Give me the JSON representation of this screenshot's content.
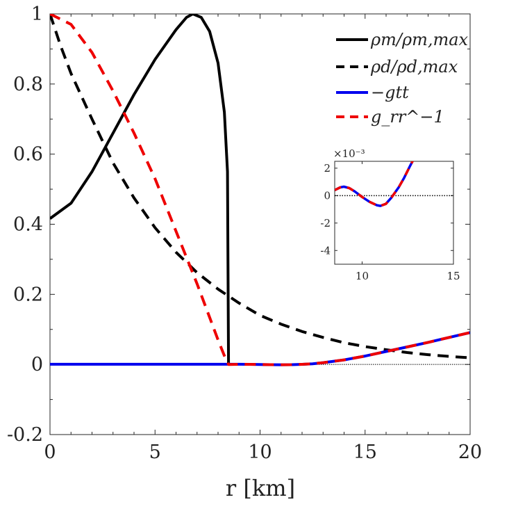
{
  "chart_data": {
    "type": "line",
    "xlabel": "r [km]",
    "ylabel": "",
    "xlim": [
      0,
      20
    ],
    "ylim": [
      -0.2,
      1
    ],
    "x_ticks": [
      "0",
      "5",
      "10",
      "15",
      "20"
    ],
    "y_ticks": [
      "-0.2",
      "0",
      "0.2",
      "0.4",
      "0.6",
      "0.8",
      "1"
    ],
    "grid": false,
    "legend_position": "top-right",
    "series": [
      {
        "name": "ρm/ρm,max",
        "color": "#000000",
        "style": "solid",
        "x": [
          0,
          1,
          2,
          3,
          4,
          5,
          6,
          6.5,
          6.8,
          7.2,
          7.6,
          8.0,
          8.3,
          8.45,
          8.5
        ],
        "y": [
          0.416,
          0.46,
          0.55,
          0.66,
          0.77,
          0.87,
          0.955,
          0.99,
          1.0,
          0.99,
          0.95,
          0.86,
          0.72,
          0.55,
          0.0
        ]
      },
      {
        "name": "ρd/ρd,max",
        "color": "#000000",
        "style": "dashed",
        "x": [
          0,
          0.5,
          1,
          2,
          3,
          4,
          5,
          6,
          7,
          8,
          9,
          10,
          11,
          12,
          13,
          14,
          15,
          16,
          17,
          18,
          19,
          20
        ],
        "y": [
          1.0,
          0.91,
          0.83,
          0.7,
          0.575,
          0.475,
          0.39,
          0.32,
          0.262,
          0.215,
          0.175,
          0.14,
          0.115,
          0.094,
          0.077,
          0.062,
          0.051,
          0.042,
          0.034,
          0.028,
          0.023,
          0.019
        ]
      },
      {
        "name": "−gtt",
        "color": "#0000ee",
        "style": "solid",
        "x": [
          0,
          2,
          4,
          6,
          8,
          8.5,
          9,
          9.5,
          10,
          10.5,
          11,
          11.5,
          12,
          12.5,
          13,
          14,
          15,
          16,
          17,
          18,
          19,
          20
        ],
        "y": [
          0.0005,
          0.0005,
          0.0005,
          0.0005,
          0.0005,
          0.0005,
          0.0006,
          0.0003,
          -0.0002,
          -0.0006,
          -0.0008,
          -0.0006,
          0.0003,
          0.002,
          0.005,
          0.013,
          0.024,
          0.037,
          0.05,
          0.063,
          0.077,
          0.091
        ]
      },
      {
        "name": "g_rr^−1",
        "color": "#ee0000",
        "style": "dashed",
        "x": [
          0,
          1,
          2,
          3,
          4,
          5,
          6,
          7,
          7.5,
          8,
          8.3,
          8.5,
          9,
          9.5,
          10,
          10.5,
          11,
          11.5,
          12,
          12.5,
          13,
          14,
          15,
          16,
          17,
          18,
          19,
          20
        ],
        "y": [
          1.0,
          0.97,
          0.89,
          0.78,
          0.66,
          0.53,
          0.38,
          0.23,
          0.15,
          0.07,
          0.025,
          0.0,
          0.0006,
          0.0003,
          -0.0002,
          -0.0006,
          -0.0008,
          -0.0006,
          0.0003,
          0.002,
          0.005,
          0.013,
          0.024,
          0.037,
          0.05,
          0.063,
          0.077,
          0.091
        ]
      }
    ],
    "inset": {
      "xlim": [
        8.5,
        15
      ],
      "ylim": [
        -5,
        2.5
      ],
      "y_exponent_label": "×10⁻³",
      "x_ticks": [
        "10",
        "15"
      ],
      "y_ticks": [
        "-4",
        "-2",
        "0",
        "2"
      ],
      "x": [
        8.5,
        8.8,
        9.0,
        9.3,
        9.6,
        10.0,
        10.4,
        10.8,
        11.0,
        11.3,
        11.6,
        12.0,
        12.3,
        12.6,
        12.8,
        13.0
      ],
      "y": [
        0.4,
        0.6,
        0.65,
        0.55,
        0.3,
        -0.1,
        -0.45,
        -0.7,
        -0.75,
        -0.6,
        -0.15,
        0.6,
        1.3,
        2.1,
        2.6,
        3.0
      ]
    },
    "reference_line": {
      "y": 0,
      "style": "dotted"
    }
  }
}
